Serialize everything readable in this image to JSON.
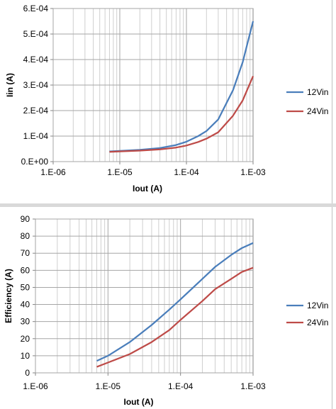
{
  "chart_data": [
    {
      "type": "line",
      "xscale": "log",
      "xlabel": "Iout (A)",
      "ylabel": "Iin (A)",
      "xlim": [
        1e-06,
        0.001
      ],
      "ylim": [
        0,
        0.0006
      ],
      "xticks": [
        "1.E-06",
        "1.E-05",
        "1.E-04",
        "1.E-03"
      ],
      "yticks": [
        "0.E+00",
        "1.E-04",
        "2.E-04",
        "3.E-04",
        "4.E-04",
        "5.E-04",
        "6.E-04"
      ],
      "grid": true,
      "legend_position": "right",
      "series": [
        {
          "name": "12Vin",
          "color": "#4a7ebb",
          "x": [
            7e-06,
            1e-05,
            2e-05,
            4e-05,
            7e-05,
            0.0001,
            0.00015,
            0.0002,
            0.0003,
            0.0005,
            0.0007,
            0.001
          ],
          "y": [
            4e-05,
            4.2e-05,
            4.6e-05,
            5.3e-05,
            6.5e-05,
            7.8e-05,
            0.0001,
            0.00012,
            0.000165,
            0.00028,
            0.00039,
            0.00055
          ]
        },
        {
          "name": "24Vin",
          "color": "#be4b48",
          "x": [
            7e-06,
            1e-05,
            2e-05,
            4e-05,
            7e-05,
            0.0001,
            0.00015,
            0.0002,
            0.0003,
            0.0005,
            0.0007,
            0.001
          ],
          "y": [
            3.8e-05,
            4e-05,
            4.3e-05,
            4.8e-05,
            5.5e-05,
            6.3e-05,
            7.7e-05,
            9e-05,
            0.000115,
            0.00018,
            0.00024,
            0.000335
          ]
        }
      ]
    },
    {
      "type": "line",
      "xscale": "log",
      "xlabel": "Iout (A)",
      "ylabel": "Efficiency (A)",
      "xlim": [
        1e-06,
        0.001
      ],
      "ylim": [
        0,
        90
      ],
      "xticks": [
        "1.E-06",
        "1.E-05",
        "1.E-04",
        "1.E-03"
      ],
      "yticks": [
        "0",
        "10",
        "20",
        "30",
        "40",
        "50",
        "60",
        "70",
        "80",
        "90"
      ],
      "grid": true,
      "legend_position": "right",
      "series": [
        {
          "name": "12Vin",
          "color": "#4a7ebb",
          "x": [
            7e-06,
            1e-05,
            2e-05,
            4e-05,
            7e-05,
            0.0001,
            0.0002,
            0.0003,
            0.0005,
            0.0007,
            0.001
          ],
          "y": [
            7,
            10,
            18,
            28,
            37,
            43,
            55,
            62,
            69,
            73,
            76
          ]
        },
        {
          "name": "24Vin",
          "color": "#be4b48",
          "x": [
            7e-06,
            1e-05,
            2e-05,
            4e-05,
            7e-05,
            0.0001,
            0.0002,
            0.0003,
            0.0005,
            0.0007,
            0.001
          ],
          "y": [
            3.5,
            6,
            11,
            18,
            25,
            31,
            42,
            49,
            55,
            59,
            61.5
          ]
        }
      ]
    }
  ]
}
